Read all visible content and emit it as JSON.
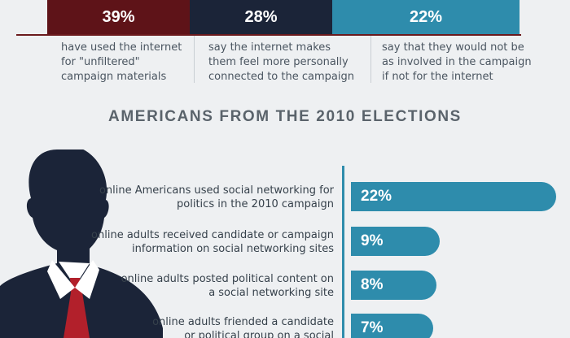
{
  "stats": [
    {
      "value": "39%",
      "color": "#5e1318",
      "lines": [
        "have used the internet",
        "for \"unfiltered\"",
        "campaign materials"
      ]
    },
    {
      "value": "28%",
      "color": "#1b2438",
      "lines": [
        "say the internet makes",
        "them feel more personally",
        "connected to the campaign"
      ]
    },
    {
      "value": "22%",
      "color": "#2e8cac",
      "lines": [
        "say that they would not be",
        "as involved in the campaign",
        "if not for the internet"
      ]
    }
  ],
  "section_title": "AMERICANS FROM THE 2010 ELECTIONS",
  "bars": [
    {
      "value": 22,
      "label": "22%",
      "lines": [
        "online Americans used social networking for",
        "politics in the 2010 campaign"
      ]
    },
    {
      "value": 9,
      "label": "9%",
      "lines": [
        "online adults received candidate or campaign",
        "information on social networking sites"
      ]
    },
    {
      "value": 8,
      "label": "8%",
      "lines": [
        "online adults posted political content on",
        "a social networking site"
      ]
    },
    {
      "value": 7,
      "label": "7%",
      "lines": [
        "online adults friended a candidate",
        "or political group on a social"
      ]
    }
  ],
  "colors": {
    "accent": "#2e8cac",
    "dark_red": "#5e1318",
    "navy": "#1b2438",
    "tie": "#b2202b"
  }
}
